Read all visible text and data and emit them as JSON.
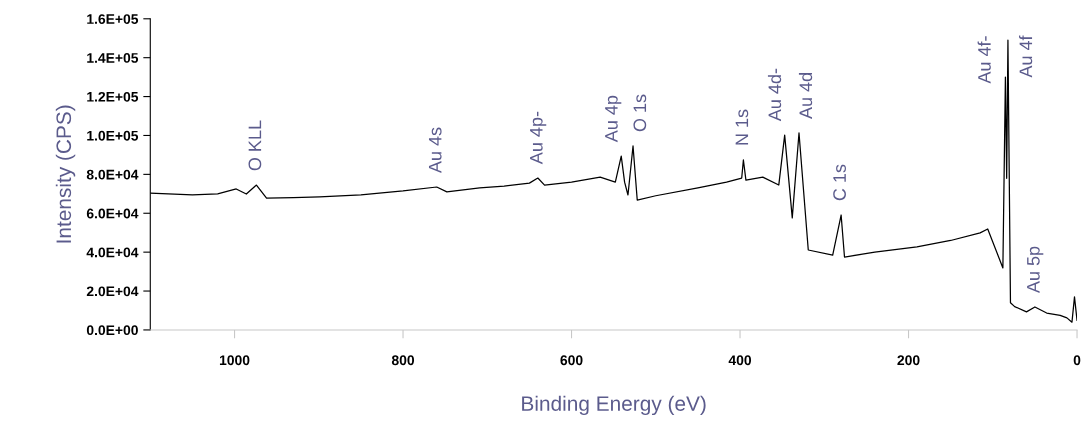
{
  "chart_data": {
    "type": "line",
    "xlabel": "Binding Energy (eV)",
    "ylabel": "Intensity (CPS)",
    "xlim": [
      1100,
      0
    ],
    "xticks": [
      1000,
      800,
      600,
      400,
      200,
      0
    ],
    "ylim": [
      0,
      160000
    ],
    "yticks": [
      {
        "value": 0,
        "label": "0.0E+00"
      },
      {
        "value": 20000,
        "label": "2.0E+04"
      },
      {
        "value": 40000,
        "label": "4.0E+04"
      },
      {
        "value": 60000,
        "label": "6.0E+04"
      },
      {
        "value": 80000,
        "label": "8.0E+04"
      },
      {
        "value": 100000,
        "label": "1.0E+05"
      },
      {
        "value": 120000,
        "label": "1.2E+05"
      },
      {
        "value": 140000,
        "label": "1.4E+05"
      },
      {
        "value": 160000,
        "label": "1.6E+05"
      }
    ],
    "grid": false,
    "legend": false,
    "marker": "none",
    "line_style": "solid",
    "series": [
      {
        "color": "#000000",
        "x": [
          1100,
          1050,
          1020,
          998,
          986,
          974,
          962,
          930,
          899,
          850,
          800,
          760,
          748,
          709,
          680,
          650,
          640,
          632,
          600,
          566,
          548,
          541,
          537,
          533,
          527,
          522,
          500,
          450,
          416,
          398,
          396,
          393,
          373,
          354,
          347,
          338,
          330,
          319,
          290,
          280,
          276,
          240,
          190,
          150,
          115,
          106,
          88,
          85,
          83.5,
          82,
          79,
          74,
          60,
          50,
          36,
          20,
          12,
          6,
          3,
          0
        ],
        "values": [
          70400,
          69500,
          70000,
          72500,
          69900,
          74500,
          67800,
          68000,
          68400,
          69500,
          71500,
          73500,
          71000,
          73000,
          74000,
          75500,
          78100,
          74500,
          76000,
          78600,
          76000,
          89400,
          76000,
          69400,
          94600,
          66800,
          69000,
          73000,
          76000,
          78100,
          87400,
          77000,
          78600,
          74500,
          100200,
          57600,
          101300,
          41100,
          38500,
          59100,
          37500,
          40000,
          42700,
          46000,
          49900,
          51900,
          31900,
          130000,
          78000,
          149000,
          14000,
          12000,
          9300,
          11800,
          8700,
          7500,
          6200,
          4000,
          17000,
          5000
        ]
      }
    ],
    "annotations": [
      {
        "text": "O KLL",
        "x": 974,
        "y": 74500
      },
      {
        "text": "Au 4s",
        "x": 760,
        "y": 73500
      },
      {
        "text": "Au 4p-",
        "x": 640,
        "y": 78100
      },
      {
        "text": "Au 4p",
        "x": 541,
        "y": 89400
      },
      {
        "text": "O 1s",
        "x": 527,
        "y": 94600
      },
      {
        "text": "N 1s",
        "x": 396,
        "y": 87400
      },
      {
        "text": "Au 4d-",
        "x": 347,
        "y": 100200
      },
      {
        "text": "Au 4d",
        "x": 330,
        "y": 101300
      },
      {
        "text": "C 1s",
        "x": 280,
        "y": 59100
      },
      {
        "text": "Au 4f-",
        "x": 85,
        "y": 130000
      },
      {
        "text": "Au 4f",
        "x": 82,
        "y": 149000
      },
      {
        "text": "Au 5p",
        "x": 50,
        "y": 11800
      }
    ]
  }
}
